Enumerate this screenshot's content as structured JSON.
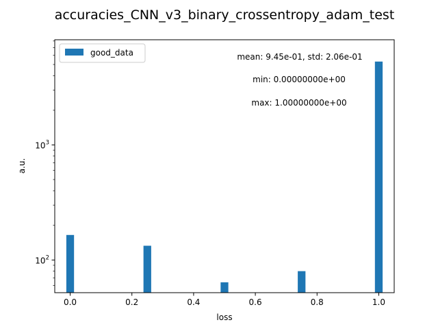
{
  "chart_data": {
    "type": "bar",
    "title": "accuracies_CNN_v3_binary_crossentropy_adam_test",
    "xlabel": "loss",
    "ylabel": "a.u.",
    "xlim": [
      -0.05,
      1.05
    ],
    "ylim": [
      52,
      8200
    ],
    "yscale": "log",
    "grid": false,
    "legend_position": "top-left",
    "bar_width": 0.025,
    "bar_color": "#1f77b4",
    "x_ticks": [
      {
        "value": 0.0,
        "label": "0.0"
      },
      {
        "value": 0.2,
        "label": "0.2"
      },
      {
        "value": 0.4,
        "label": "0.4"
      },
      {
        "value": 0.6,
        "label": "0.6"
      },
      {
        "value": 0.8,
        "label": "0.8"
      },
      {
        "value": 1.0,
        "label": "1.0"
      }
    ],
    "y_ticks": [
      {
        "value": 100,
        "base": "10",
        "exp": "2"
      },
      {
        "value": 1000,
        "base": "10",
        "exp": "3"
      }
    ],
    "y_minor_ticks": [
      60,
      70,
      80,
      90,
      200,
      300,
      400,
      500,
      600,
      700,
      800,
      900,
      2000,
      3000,
      4000,
      5000,
      6000,
      7000,
      8000
    ],
    "series": [
      {
        "name": "good_data",
        "color": "#1f77b4",
        "x": [
          0.0,
          0.25,
          0.5,
          0.75,
          1.0
        ],
        "values": [
          165,
          133,
          64,
          80,
          5300
        ]
      }
    ],
    "annotations": [
      "mean: 9.45e-01, std: 2.06e-01",
      "min: 0.00000000e+00",
      "max: 1.00000000e+00"
    ]
  }
}
